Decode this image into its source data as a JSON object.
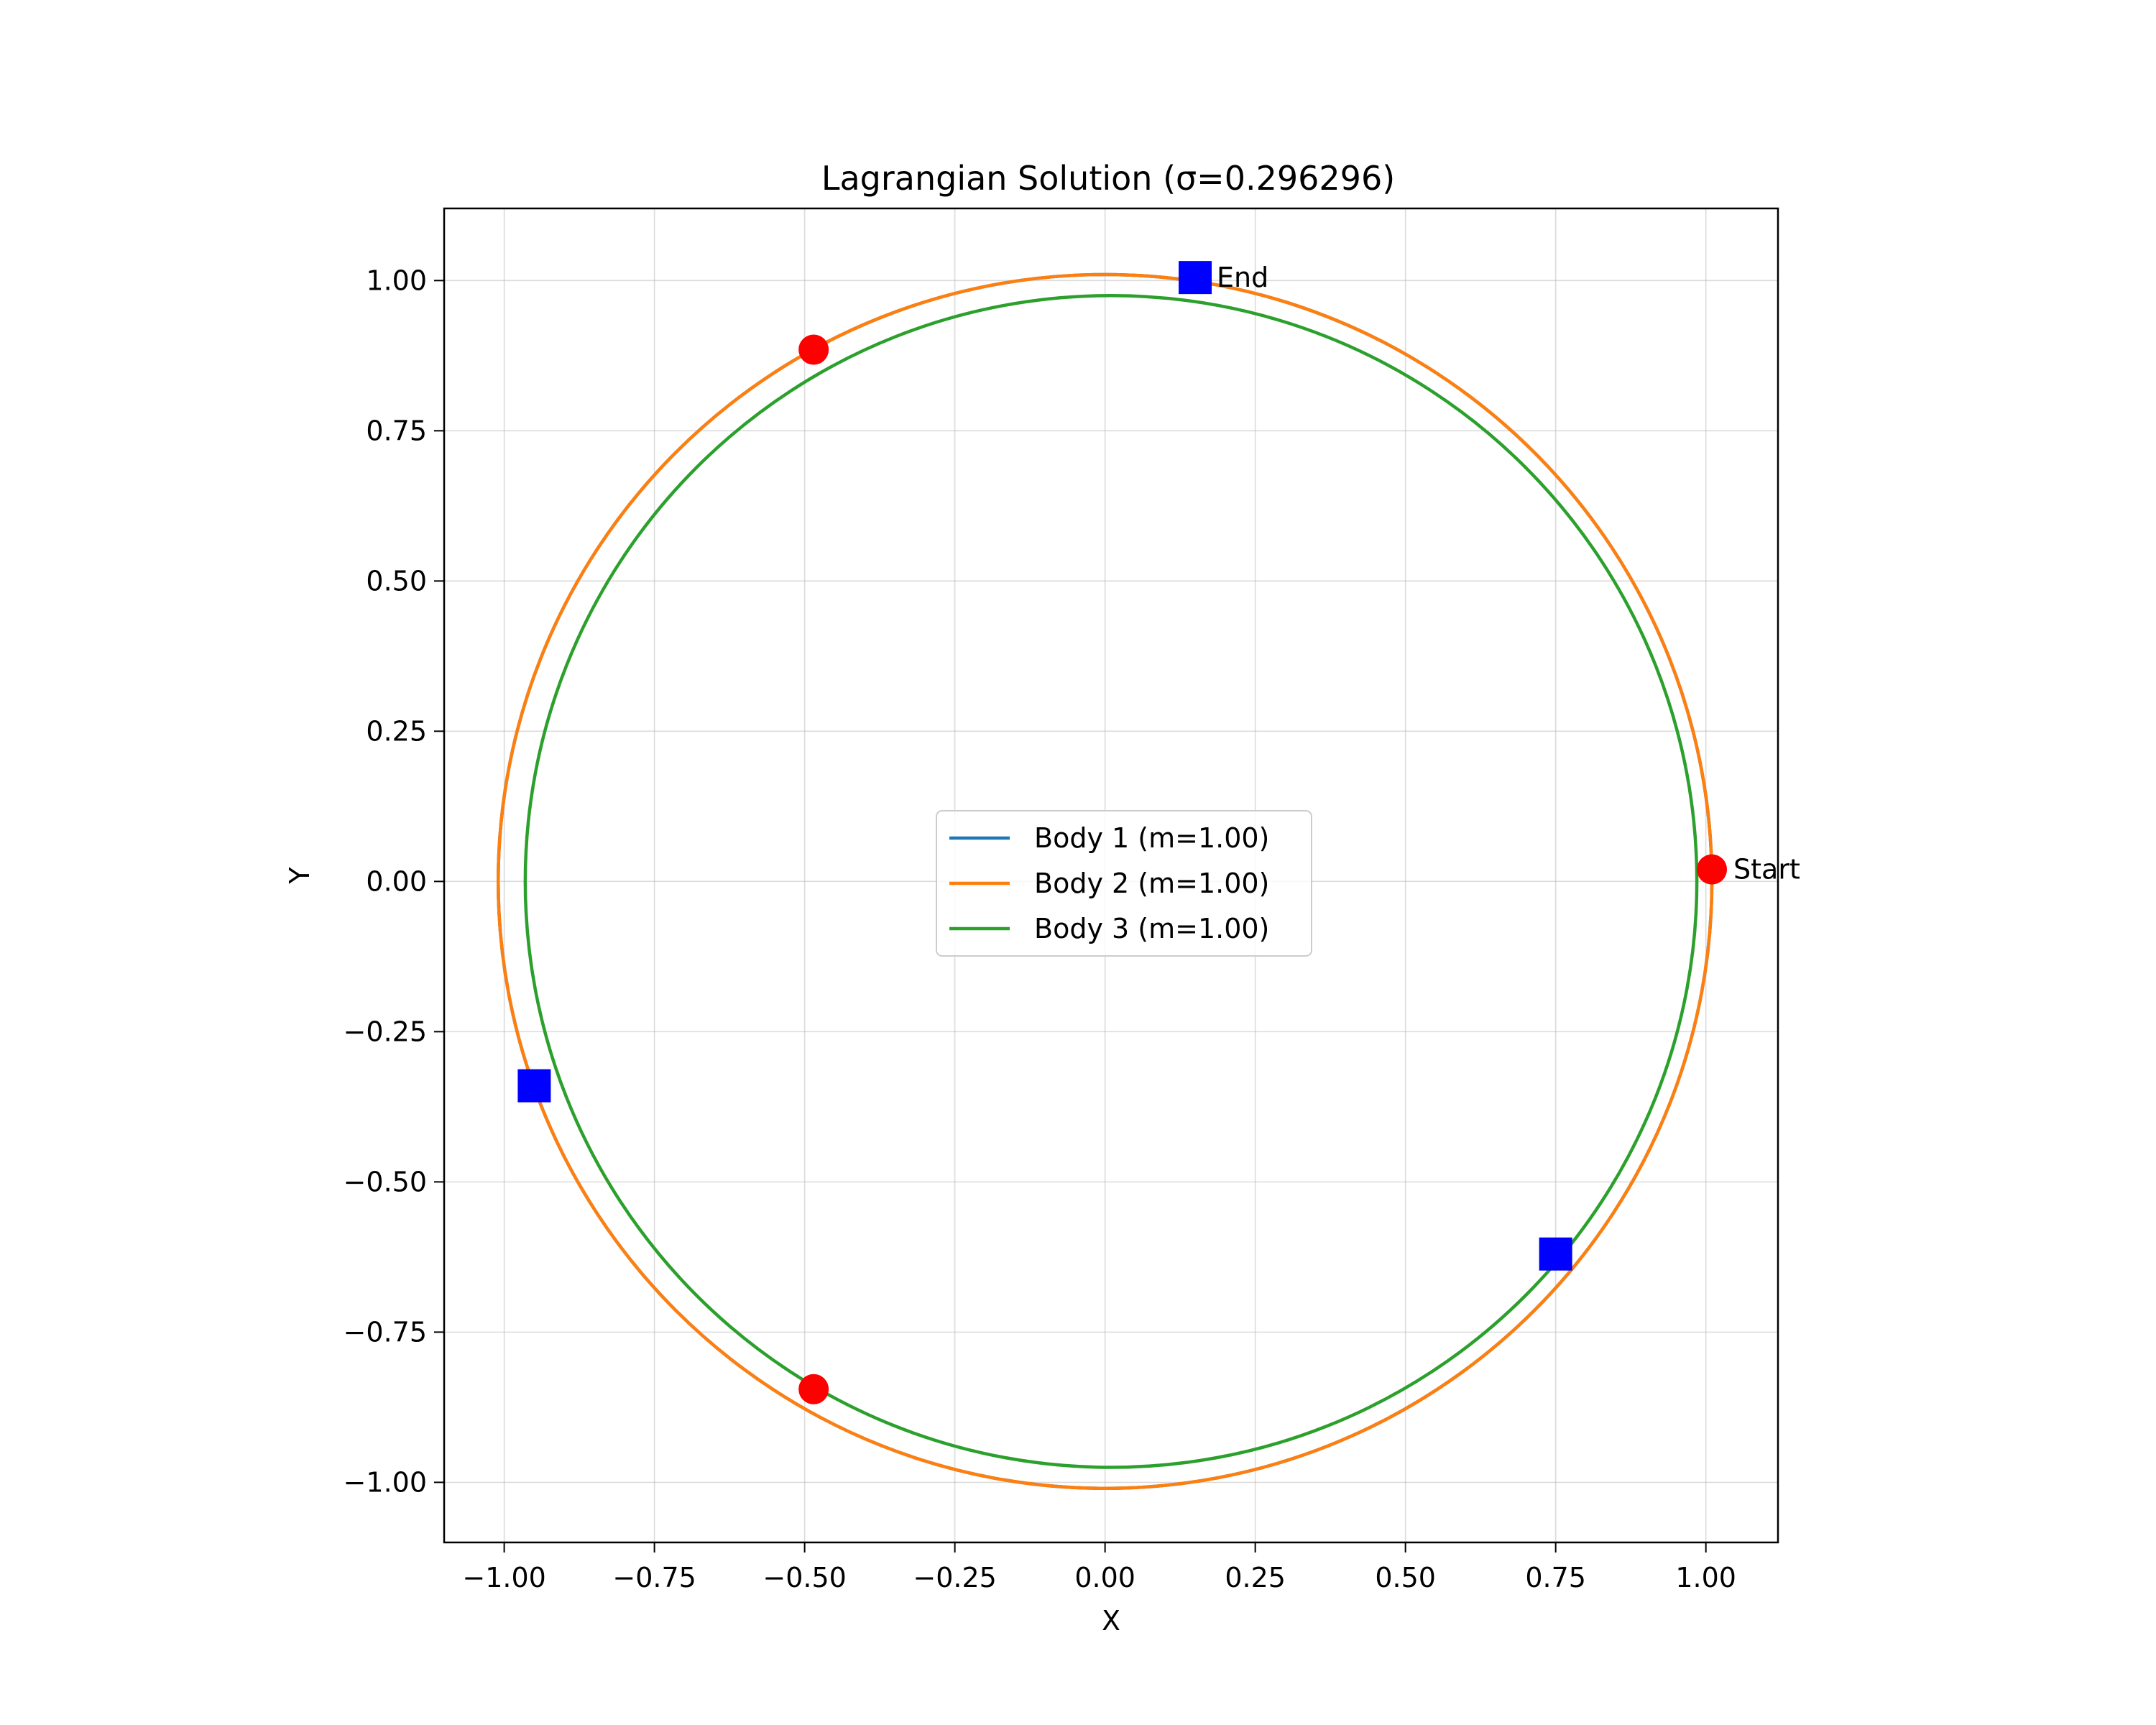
{
  "chart_data": {
    "type": "line",
    "title": "Lagrangian Solution (σ=0.296296)",
    "xlabel": "X",
    "ylabel": "Y",
    "xlim": [
      -1.1,
      1.12
    ],
    "ylim": [
      -1.1,
      1.12
    ],
    "xticks": [
      -1.0,
      -0.75,
      -0.5,
      -0.25,
      0.0,
      0.25,
      0.5,
      0.75,
      1.0
    ],
    "yticks": [
      -1.0,
      -0.75,
      -0.5,
      -0.25,
      0.0,
      0.25,
      0.5,
      0.75,
      1.0
    ],
    "xtick_labels": [
      "−1.00",
      "−0.75",
      "−0.50",
      "−0.25",
      "0.00",
      "0.25",
      "0.50",
      "0.75",
      "1.00"
    ],
    "ytick_labels": [
      "−1.00",
      "−0.75",
      "−0.50",
      "−0.25",
      "0.00",
      "0.25",
      "0.50",
      "0.75",
      "1.00"
    ],
    "grid": true,
    "legend_position": "center",
    "series": [
      {
        "name": "Body 1 (m=1.00)",
        "color": "#1f77b4",
        "shape": "circle",
        "center": [
          0.0,
          0.0
        ],
        "radius": 1.01
      },
      {
        "name": "Body 2 (m=1.00)",
        "color": "#ff7f0e",
        "shape": "circle",
        "center": [
          0.0,
          0.0
        ],
        "radius": 1.01
      },
      {
        "name": "Body 3 (m=1.00)",
        "color": "#2ca02c",
        "shape": "circle",
        "center": [
          0.01,
          0.0
        ],
        "radius": 0.975
      }
    ],
    "start_markers": {
      "color": "#ff0000",
      "points": [
        [
          1.01,
          0.02
        ],
        [
          -0.485,
          0.885
        ],
        [
          -0.485,
          -0.845
        ]
      ]
    },
    "end_markers": {
      "color": "#0000ff",
      "points": [
        [
          0.15,
          1.005
        ],
        [
          -0.95,
          -0.34
        ],
        [
          0.75,
          -0.62
        ]
      ]
    },
    "annotations": [
      {
        "text": "Start",
        "x": 1.01,
        "y": 0.02
      },
      {
        "text": "End",
        "x": 0.15,
        "y": 1.005
      }
    ]
  }
}
